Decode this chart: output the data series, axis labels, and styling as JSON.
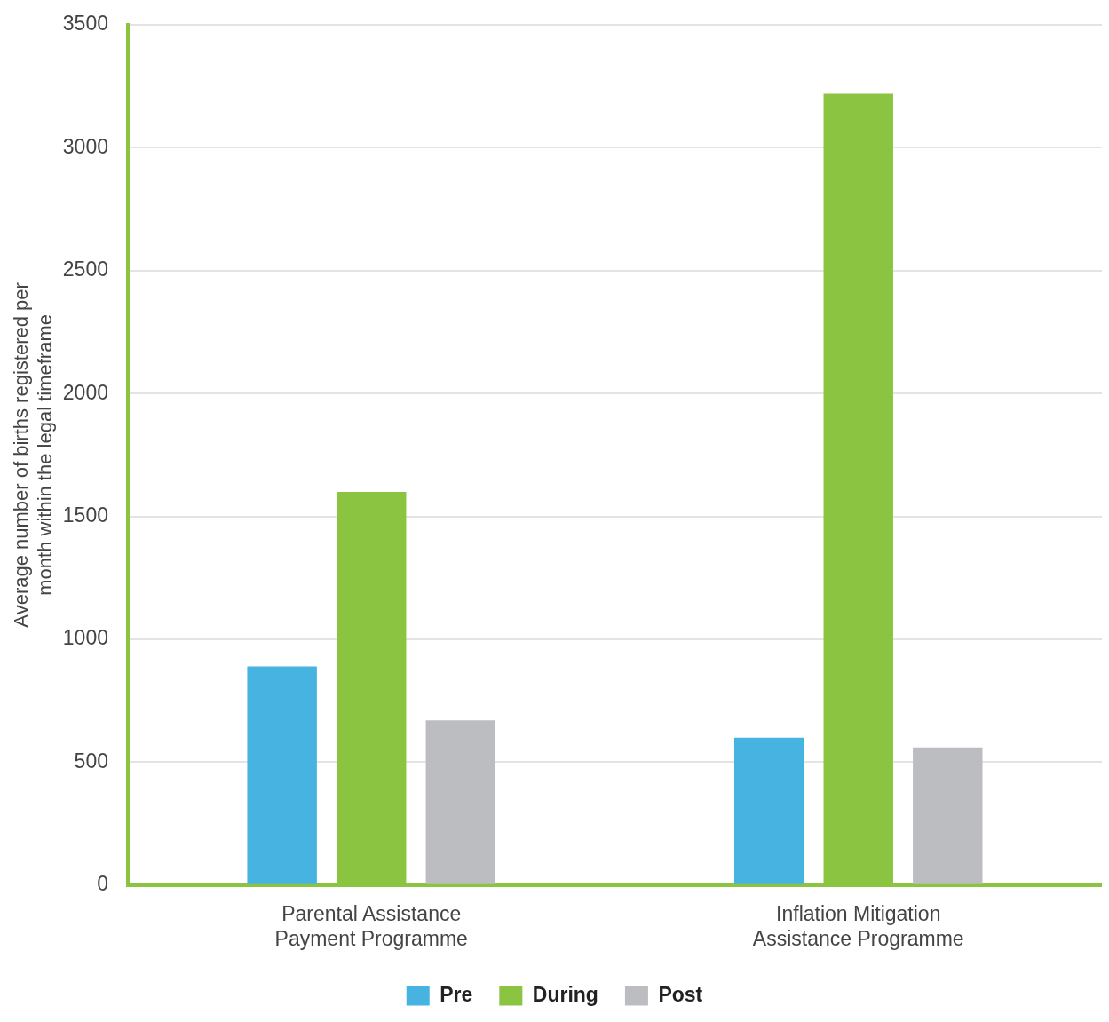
{
  "chart_data": {
    "type": "bar",
    "ylabel": "Average number of births registered per month within the legal timeframe",
    "categories": [
      "Parental Assistance Payment Programme",
      "Inflation Mitigation Assistance Programme"
    ],
    "series": [
      {
        "name": "Pre",
        "color": "#47b3e0",
        "values": [
          890,
          600
        ]
      },
      {
        "name": "During",
        "color": "#8bc440",
        "values": [
          1600,
          3220
        ]
      },
      {
        "name": "Post",
        "color": "#bcbdc1",
        "values": [
          670,
          560
        ]
      }
    ],
    "ylim": [
      0,
      3500
    ],
    "yticks": [
      0,
      500,
      1000,
      1500,
      2000,
      2500,
      3000,
      3500
    ],
    "grid": "y",
    "legend": "bottom"
  }
}
